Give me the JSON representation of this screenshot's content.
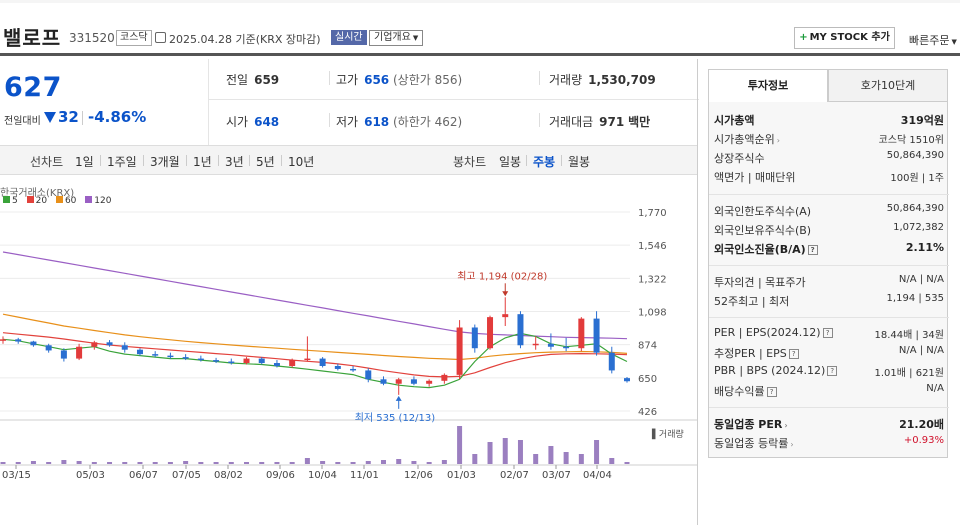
{
  "header": {
    "name": "밸로프",
    "code": "331520",
    "market_badge": "코스닥",
    "date_text": "2025.04.28  기준(KRX 장마감)",
    "live_badge": "실시간",
    "company_button": "기업개요",
    "mystock_button": "MY STOCK 추가",
    "quick_order": "빠른주문"
  },
  "price": {
    "current": "627",
    "change_label": "전일대비",
    "change": "32",
    "rate": "-4.86%"
  },
  "stats": {
    "prev_label": "전일",
    "prev": "659",
    "high_label": "고가",
    "high": "656",
    "upper_limit": "(상한가 856)",
    "volume_label": "거래량",
    "volume": "1,530,709",
    "open_label": "시가",
    "open": "648",
    "low_label": "저가",
    "low": "618",
    "lower_limit": "(하한가 462)",
    "amount_label": "거래대금",
    "amount": "971",
    "amount_unit": "백만"
  },
  "periodbar": {
    "line_chart": "선차트",
    "periods": [
      "1일",
      "1주일",
      "3개월",
      "1년",
      "3년",
      "5년",
      "10년"
    ],
    "candle_chart": "봉차트",
    "candles": [
      "일봉",
      "주봉",
      "월봉"
    ],
    "active_candle": "주봉"
  },
  "chart_data": {
    "type": "candlestick",
    "source": "한국거래소(KRX)",
    "legend": [
      {
        "name": "5",
        "color": "#3aa33a"
      },
      {
        "name": "20",
        "color": "#e2423c"
      },
      {
        "name": "60",
        "color": "#e8901a"
      },
      {
        "name": "120",
        "color": "#9a5fc4"
      }
    ],
    "y_ticks": [
      "1,770",
      "1,546",
      "1,322",
      "1,098",
      "874",
      "650",
      "426"
    ],
    "y_tick_values": [
      1770,
      1546,
      1322,
      1098,
      874,
      650,
      426
    ],
    "ylim": [
      426,
      1770
    ],
    "x_ticks": [
      "03/15",
      "05/03",
      "06/07",
      "07/05",
      "08/02",
      "09/06",
      "10/04",
      "11/01",
      "12/06",
      "01/03",
      "02/07",
      "03/07",
      "04/04"
    ],
    "max_label": "최고 1,194 (02/28)",
    "min_label": "최저 535 (12/13)",
    "volume_label": "거래량",
    "ma": {
      "120": [
        1500,
        1482,
        1464,
        1446,
        1428,
        1410,
        1392,
        1374,
        1356,
        1338,
        1320,
        1302,
        1284,
        1266,
        1248,
        1230,
        1212,
        1194,
        1176,
        1158,
        1140,
        1122,
        1104,
        1086,
        1068,
        1050,
        1032,
        1014,
        996,
        978,
        960,
        950,
        944,
        940,
        936,
        932,
        928,
        924,
        922,
        920,
        918,
        914
      ],
      "60": [
        1080,
        1060,
        1040,
        1020,
        1000,
        985,
        970,
        955,
        940,
        928,
        917,
        907,
        897,
        888,
        880,
        872,
        864,
        857,
        850,
        843,
        836,
        829,
        822,
        815,
        808,
        801,
        794,
        788,
        782,
        778,
        774,
        782,
        796,
        806,
        814,
        820,
        824,
        826,
        828,
        826,
        822,
        815
      ],
      "20": [
        955,
        945,
        935,
        925,
        912,
        898,
        884,
        872,
        862,
        854,
        846,
        838,
        830,
        822,
        814,
        806,
        797,
        788,
        779,
        770,
        762,
        754,
        744,
        732,
        716,
        698,
        684,
        670,
        660,
        656,
        660,
        684,
        720,
        752,
        778,
        796,
        808,
        812,
        814,
        812,
        810,
        806
      ],
      "5": [
        910,
        900,
        880,
        860,
        840,
        850,
        860,
        830,
        810,
        800,
        790,
        780,
        780,
        770,
        760,
        750,
        745,
        740,
        730,
        720,
        708,
        696,
        684,
        672,
        640,
        620,
        600,
        590,
        584,
        600,
        640,
        760,
        860,
        920,
        950,
        930,
        880,
        860,
        870,
        880,
        810,
        760
      ]
    },
    "candles": [
      [
        900,
        930,
        880,
        910
      ],
      [
        910,
        920,
        880,
        895
      ],
      [
        895,
        900,
        860,
        870
      ],
      [
        870,
        880,
        820,
        835
      ],
      [
        835,
        850,
        760,
        780
      ],
      [
        780,
        880,
        770,
        860
      ],
      [
        860,
        900,
        840,
        890
      ],
      [
        890,
        905,
        860,
        870
      ],
      [
        870,
        890,
        820,
        840
      ],
      [
        840,
        850,
        800,
        810
      ],
      [
        810,
        830,
        790,
        800
      ],
      [
        800,
        820,
        780,
        790
      ],
      [
        790,
        810,
        770,
        780
      ],
      [
        780,
        800,
        760,
        770
      ],
      [
        770,
        785,
        750,
        760
      ],
      [
        760,
        780,
        740,
        750
      ],
      [
        750,
        790,
        740,
        780
      ],
      [
        780,
        790,
        740,
        750
      ],
      [
        750,
        770,
        720,
        730
      ],
      [
        730,
        780,
        720,
        770
      ],
      [
        770,
        930,
        760,
        780
      ],
      [
        780,
        790,
        720,
        730
      ],
      [
        730,
        745,
        700,
        710
      ],
      [
        710,
        730,
        690,
        700
      ],
      [
        700,
        715,
        620,
        640
      ],
      [
        640,
        660,
        600,
        610
      ],
      [
        610,
        650,
        535,
        640
      ],
      [
        640,
        660,
        600,
        610
      ],
      [
        610,
        640,
        590,
        630
      ],
      [
        630,
        680,
        610,
        670
      ],
      [
        670,
        1040,
        640,
        990
      ],
      [
        990,
        1010,
        820,
        850
      ],
      [
        850,
        1070,
        840,
        1060
      ],
      [
        1060,
        1194,
        1000,
        1080
      ],
      [
        1080,
        1100,
        850,
        870
      ],
      [
        870,
        930,
        840,
        880
      ],
      [
        880,
        950,
        840,
        860
      ],
      [
        860,
        920,
        830,
        850
      ],
      [
        850,
        1060,
        830,
        1050
      ],
      [
        1050,
        1100,
        800,
        820
      ],
      [
        820,
        860,
        680,
        700
      ],
      [
        648,
        656,
        618,
        627
      ]
    ],
    "volumes": [
      2,
      2,
      3,
      2,
      4,
      3,
      2,
      2,
      2,
      2,
      2,
      2,
      3,
      2,
      2,
      2,
      2,
      2,
      2,
      2,
      6,
      3,
      2,
      2,
      3,
      4,
      5,
      3,
      2,
      4,
      38,
      10,
      22,
      26,
      24,
      10,
      18,
      12,
      10,
      24,
      6,
      2
    ]
  },
  "panel": {
    "tab1": "투자정보",
    "tab2": "호가10단계",
    "market_cap_label": "시가총액",
    "market_cap": "319억원",
    "market_cap_rank_label": "시가총액순위",
    "market_cap_rank": "코스닥 1510위",
    "shares_label": "상장주식수",
    "shares": "50,864,390",
    "par_label": "액면가 | 매매단위",
    "par": "100원  |  1주",
    "foreign_limit_label": "외국인한도주식수(A)",
    "foreign_limit": "50,864,390",
    "foreign_hold_label": "외국인보유주식수(B)",
    "foreign_hold": "1,072,382",
    "foreign_ratio_label": "외국인소진율(B/A)",
    "foreign_ratio": "2.11%",
    "opinion_label": "투자의견 | 목표주가",
    "opinion": "N/A  |  N/A",
    "week52_label": "52주최고 | 최저",
    "week52": "1,194  |  535",
    "per_label": "PER | EPS(2024.12)",
    "per": "18.44배  |  34원",
    "est_per_label": "추정PER | EPS",
    "est_per": "N/A  |  N/A",
    "pbr_label": "PBR | BPS (2024.12)",
    "pbr": "1.01배  |  621원",
    "dividend_label": "배당수익률",
    "dividend": "N/A",
    "industry_per_label": "동일업종 PER",
    "industry_per": "21.20배",
    "industry_rate_label": "동일업종 등락률",
    "industry_rate": "+0.93%"
  }
}
